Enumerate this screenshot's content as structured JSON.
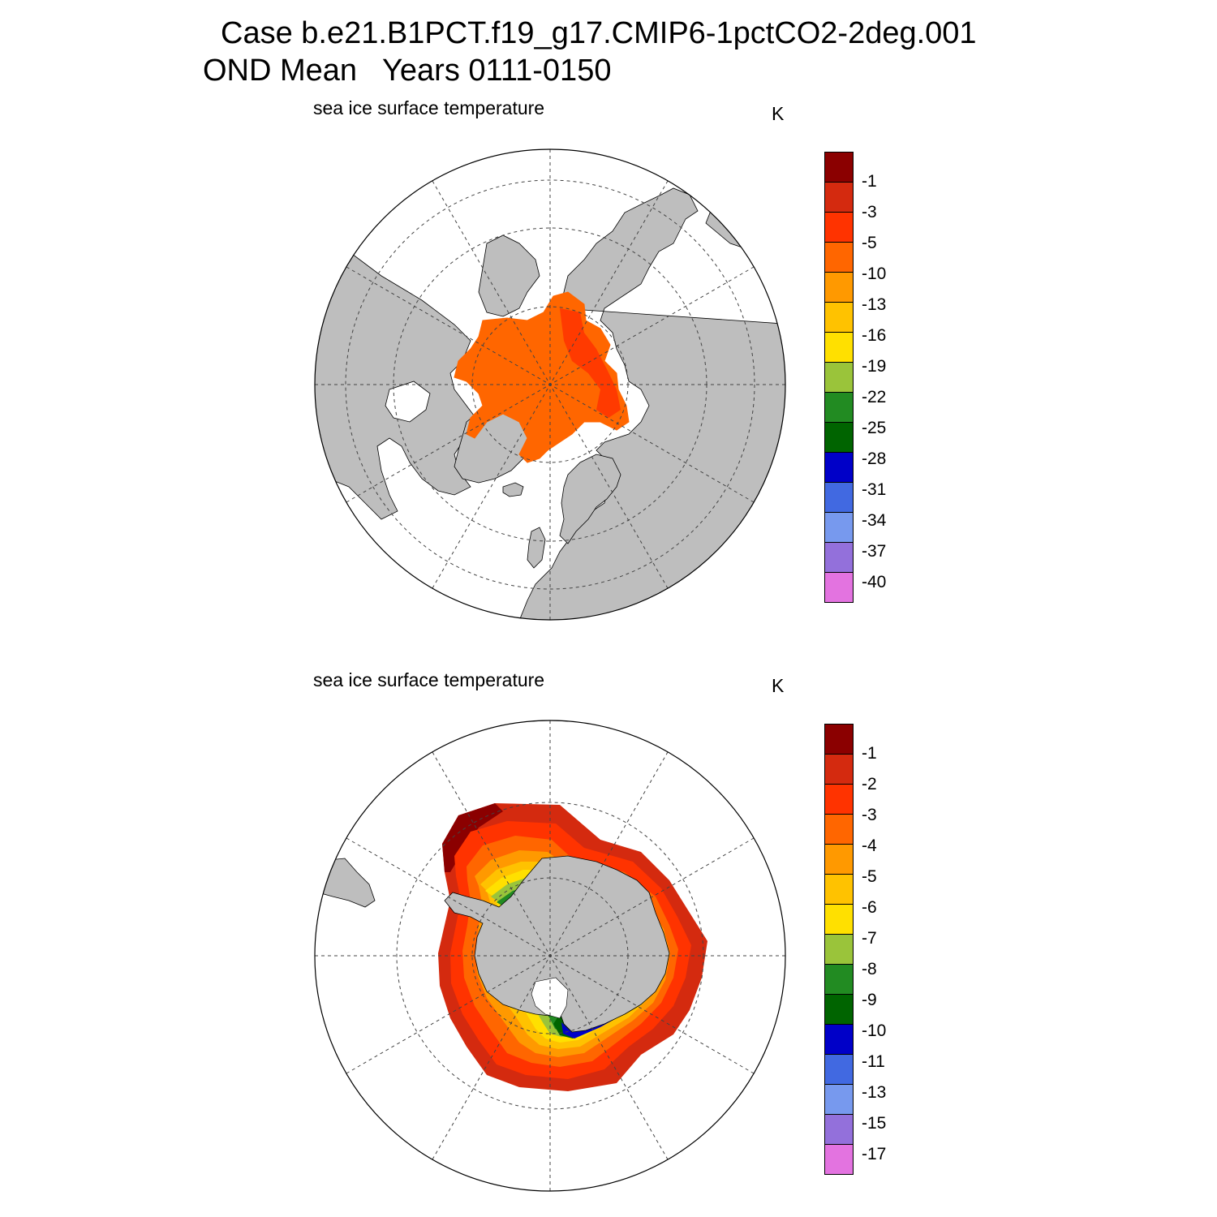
{
  "title": {
    "line1": "Case b.e21.B1PCT.f19_g17.CMIP6-1pctCO2-2deg.001",
    "line2": "OND Mean   Years 0111-0150"
  },
  "colors": {
    "land": "#bebebe",
    "ocean": "#ffffff",
    "palette": [
      "#8b0000",
      "#d42a0f",
      "#ff3300",
      "#ff6600",
      "#ff9900",
      "#ffc200",
      "#ffe000",
      "#9ac43a",
      "#228b22",
      "#006400",
      "#0000c8",
      "#4169e1",
      "#7799ee",
      "#9370db",
      "#e373e0"
    ]
  },
  "north": {
    "label": "sea ice surface temperature",
    "units": "K",
    "colorbar_labels": [
      "-1",
      "-3",
      "-5",
      "-10",
      "-13",
      "-16",
      "-19",
      "-22",
      "-25",
      "-28",
      "-31",
      "-34",
      "-37",
      "-40"
    ]
  },
  "south": {
    "label": "sea ice surface temperature",
    "units": "K",
    "colorbar_labels": [
      "-1",
      "-2",
      "-3",
      "-4",
      "-5",
      "-6",
      "-7",
      "-8",
      "-9",
      "-10",
      "-11",
      "-13",
      "-15",
      "-17"
    ]
  }
}
